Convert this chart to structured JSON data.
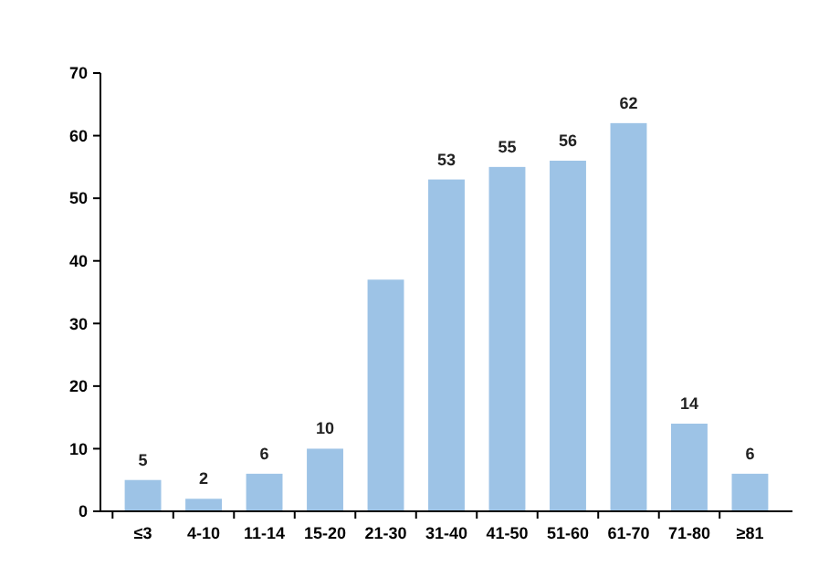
{
  "chart_data": {
    "type": "bar",
    "categories": [
      "≤3",
      "4-10",
      "11-14",
      "15-20",
      "21-30",
      "31-40",
      "41-50",
      "51-60",
      "61-70",
      "71-80",
      "≥81"
    ],
    "values": [
      5,
      2,
      6,
      10,
      37,
      53,
      55,
      56,
      62,
      14,
      6
    ],
    "value_labels": [
      "5",
      "2",
      "6",
      "10",
      null,
      "53",
      "55",
      "56",
      "62",
      "14",
      "6"
    ],
    "color": "#9dc3e6",
    "ylim": [
      0,
      70
    ],
    "yticks": [
      0,
      10,
      20,
      30,
      40,
      50,
      60,
      70
    ],
    "grid": false
  }
}
